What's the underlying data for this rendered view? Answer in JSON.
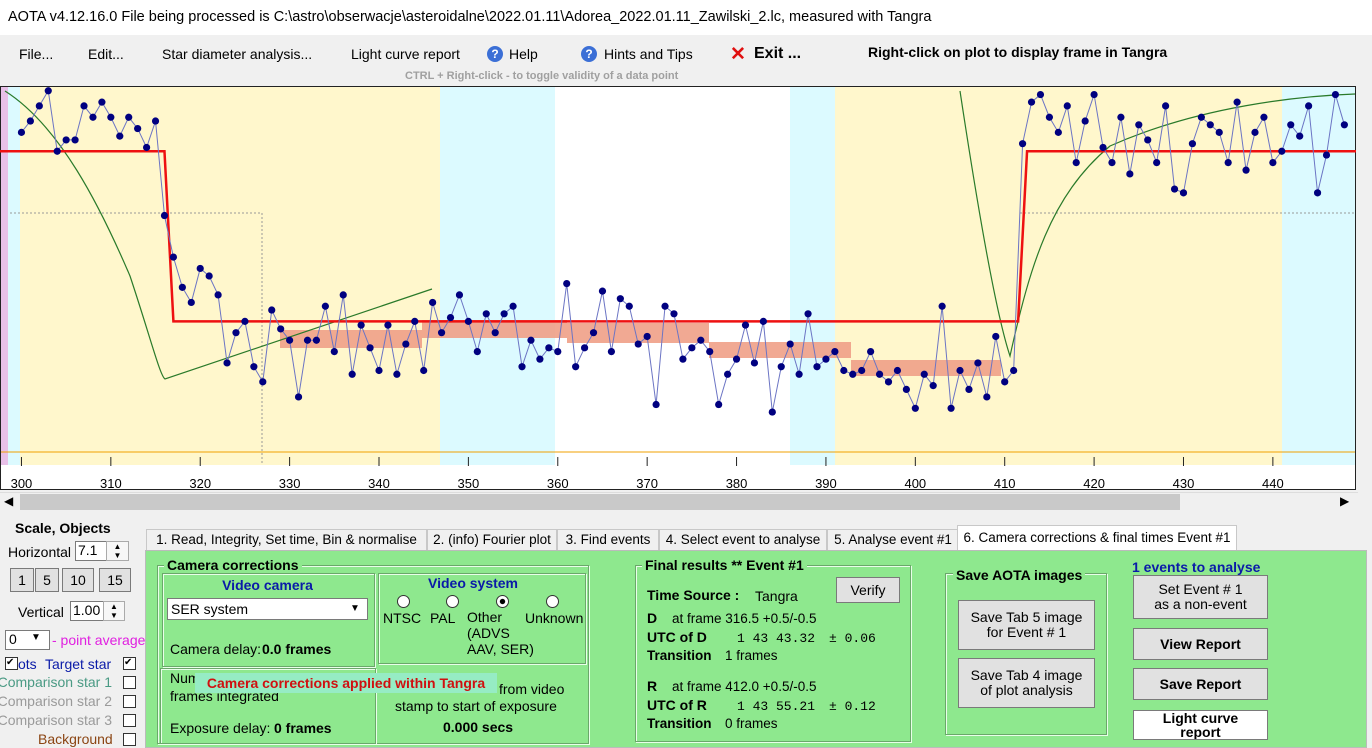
{
  "title_bar": "AOTA v4.12.16.0    File being processed is C:\\astro\\obserwacje\\asteroidalne\\2022.01.11\\Adorea_2022.01.11_Zawilski_2.lc, measured with Tangra",
  "menu": {
    "items": [
      "File...",
      "Edit...",
      "Star diameter analysis...",
      "Light curve report",
      "Help",
      "Hints and Tips",
      "Exit ..."
    ],
    "hint": "Right-click on plot to display frame in Tangra",
    "subhint": "CTRL + Right-click  -  to toggle validity of a data point"
  },
  "chart_data": {
    "type": "scatter",
    "x": [
      300,
      301,
      302,
      303,
      304,
      305,
      306,
      307,
      308,
      309,
      310,
      311,
      312,
      313,
      314,
      315,
      316,
      317,
      318,
      319,
      320,
      321,
      322,
      323,
      324,
      325,
      326,
      327,
      328,
      329,
      330,
      331,
      332,
      333,
      334,
      335,
      336,
      337,
      338,
      339,
      340,
      341,
      342,
      343,
      344,
      345,
      346,
      347,
      348,
      349,
      350,
      351,
      352,
      353,
      354,
      355,
      356,
      357,
      358,
      359,
      360,
      361,
      362,
      363,
      364,
      365,
      366,
      367,
      368,
      369,
      370,
      371,
      372,
      373,
      374,
      375,
      376,
      377,
      378,
      379,
      380,
      381,
      382,
      383,
      384,
      385,
      386,
      387,
      388,
      389,
      390,
      391,
      392,
      393,
      394,
      395,
      396,
      397,
      398,
      399,
      400,
      401,
      402,
      403,
      404,
      405,
      406,
      407,
      408,
      409,
      410,
      411,
      412,
      413,
      414,
      415,
      416,
      417,
      418,
      419,
      420,
      421,
      422,
      423,
      424,
      425,
      426,
      427,
      428,
      429,
      430,
      431,
      432,
      433,
      434,
      435,
      436,
      437,
      438,
      439,
      440,
      441,
      442,
      443,
      444,
      445,
      446,
      447,
      448
    ],
    "values": [
      88,
      91,
      95,
      99,
      83,
      86,
      86,
      95,
      92,
      96,
      92,
      87,
      92,
      89,
      84,
      91,
      66,
      55,
      47,
      43,
      52,
      50,
      45,
      27,
      35,
      38,
      26,
      22,
      41,
      36,
      33,
      18,
      33,
      33,
      42,
      30,
      45,
      24,
      37,
      31,
      25,
      37,
      24,
      32,
      38,
      25,
      43,
      35,
      39,
      45,
      38,
      30,
      40,
      35,
      40,
      42,
      26,
      33,
      28,
      31,
      30,
      48,
      26,
      31,
      35,
      46,
      30,
      44,
      42,
      32,
      34,
      16,
      42,
      40,
      28,
      31,
      33,
      30,
      16,
      24,
      28,
      37,
      27,
      38,
      14,
      26,
      32,
      24,
      40,
      26,
      28,
      30,
      25,
      24,
      25,
      30,
      24,
      22,
      25,
      20,
      15,
      24,
      21,
      42,
      15,
      25,
      20,
      27,
      18,
      34,
      22,
      25,
      85,
      96,
      98,
      92,
      88,
      95,
      80,
      91,
      98,
      84,
      80,
      92,
      77,
      90,
      86,
      80,
      95,
      73,
      72,
      85,
      92,
      90,
      88,
      80,
      96,
      78,
      88,
      92,
      80,
      83,
      90,
      87,
      95,
      72,
      82,
      98,
      90
    ],
    "color": "#000080",
    "line_color": "#6b74c4",
    "fit_color": "#ee1111",
    "xlim": [
      297.6,
      449.3
    ],
    "xticks": [
      300,
      310,
      320,
      330,
      340,
      350,
      360,
      370,
      380,
      390,
      400,
      410,
      420,
      430,
      440
    ],
    "ylim": [
      0,
      100
    ],
    "fit": {
      "d_frame": 316.5,
      "r_frame": 412.0,
      "baseline": 83,
      "event": 38
    }
  },
  "left_panel": {
    "title": "Scale, Objects",
    "horizontal_label": "Horizontal",
    "horizontal_value": "7.1",
    "buttons": [
      "1",
      "5",
      "10",
      "15"
    ],
    "vertical_label": "Vertical",
    "vertical_value": "1.00",
    "point_average_value": "0",
    "point_average_label": "- point average",
    "plots_label": "ots",
    "objects": [
      "Target star",
      "Comparison star 1",
      "Comparison star 2",
      "Comparison star 3",
      "Background"
    ]
  },
  "tabs": [
    "1.  Read, Integrity, Set time, Bin & normalise",
    "2. (info)  Fourier plot",
    "3. Find events",
    "4. Select event to analyse",
    "5. Analyse event #1",
    "6. Camera corrections & final times Event #1"
  ],
  "camera_corrections": {
    "title": "Camera corrections",
    "video_camera": {
      "title": "Video camera",
      "selected": "SER system",
      "delay_label": "Camera delay: ",
      "delay_value": "0.0 frames"
    },
    "video_system": {
      "title": "Video system",
      "options": [
        "NTSC",
        "PAL",
        "Other",
        "Unknown"
      ],
      "other_detail": [
        "(ADVS",
        "AAV, SER)"
      ]
    },
    "integration": {
      "label_top": "Num",
      "label_bottom": "frames integrated",
      "overlay": "Camera corrections applied within Tangra",
      "exposure_label": "Exposure delay: ",
      "exposure_value": "0 frames"
    },
    "offset": {
      "line1": "from video",
      "line2": "stamp to start of exposure",
      "value": "0.000 secs"
    }
  },
  "final_results": {
    "title": "Final results ** Event #1",
    "time_source_label": "Time Source :",
    "time_source": "Tangra",
    "verify": "Verify",
    "d": {
      "label": "D",
      "frame": "at frame 316.5  +0.5/-0.5",
      "utc_label": "UTC of D",
      "utc": "1 43 43.32",
      "err": "± 0.06",
      "transition_label": "Transition",
      "transition": "1 frames"
    },
    "r": {
      "label": "R",
      "frame": "at frame 412.0  +0.5/-0.5",
      "utc_label": "UTC of R",
      "utc": "1 43 55.21",
      "err": "± 0.12",
      "transition_label": "Transition",
      "transition": "0 frames"
    }
  },
  "save_images": {
    "title": "Save AOTA images",
    "buttons": [
      [
        "Save Tab 5 image",
        "for Event # 1"
      ],
      [
        "Save Tab 4 image",
        "of plot analysis"
      ]
    ]
  },
  "actions": {
    "count": "1  events to analyse",
    "set_event": [
      "Set Event # 1",
      "as a non-event"
    ],
    "view_report": "View Report",
    "save_report": "Save Report",
    "light_curve_report": [
      "Light curve",
      "report"
    ]
  }
}
